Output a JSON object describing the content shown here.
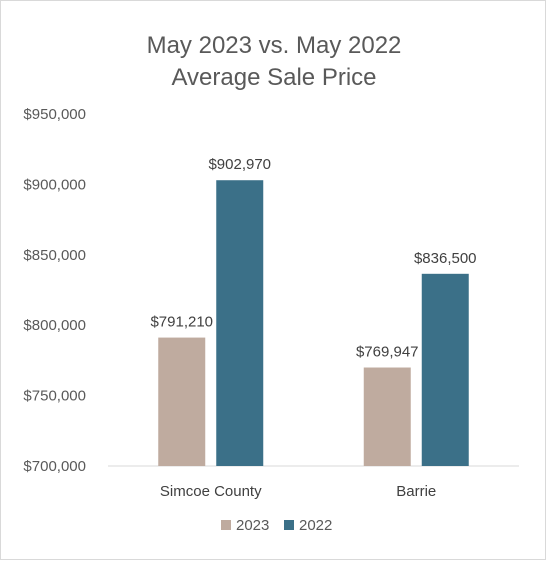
{
  "chart_data": {
    "type": "bar",
    "title_lines": [
      "May 2023 vs. May 2022",
      "Average Sale Price"
    ],
    "categories": [
      "Simcoe County",
      "Barrie"
    ],
    "series": [
      {
        "name": "2023",
        "color": "#bfab9f",
        "values": [
          791210,
          769947
        ],
        "labels": [
          "$791,210",
          "$769,947"
        ]
      },
      {
        "name": "2022",
        "color": "#3b7088",
        "values": [
          902970,
          836500
        ],
        "labels": [
          "$902,970",
          "$836,500"
        ]
      }
    ],
    "ylim": [
      700000,
      950000
    ],
    "yticks": [
      700000,
      750000,
      800000,
      850000,
      900000,
      950000
    ],
    "ytick_labels": [
      "$700,000",
      "$750,000",
      "$800,000",
      "$850,000",
      "$900,000",
      "$950,000"
    ],
    "grid": false,
    "legend_position": "bottom-center"
  }
}
